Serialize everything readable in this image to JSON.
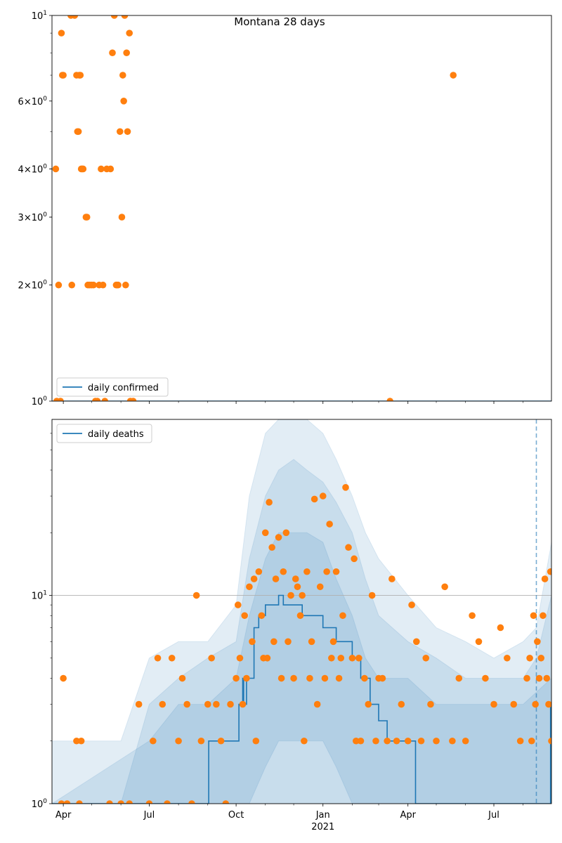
{
  "title": "Montana 28 days",
  "chart_data": [
    {
      "type": "scatter",
      "panel": "top",
      "yscale": "log",
      "ylim": [
        1,
        10
      ],
      "xlim": [
        "2020-03-20",
        "2021-08-31"
      ],
      "yticks": [
        {
          "v": 1,
          "label": "10",
          "sup": "0"
        },
        {
          "v": 2,
          "label": "2×10",
          "sup": "0"
        },
        {
          "v": 3,
          "label": "3×10",
          "sup": "0"
        },
        {
          "v": 4,
          "label": "4×10",
          "sup": "0"
        },
        {
          "v": 6,
          "label": "6×10",
          "sup": "0"
        },
        {
          "v": 10,
          "label": "10",
          "sup": "1"
        }
      ],
      "legend": {
        "label": "daily confirmed",
        "placement": "lower-left"
      },
      "line_color": "#1f77b4",
      "point_color": "#ff7f0e",
      "line": {
        "x": [
          "2020-03-20",
          "2021-08-31"
        ],
        "y": [
          1,
          1
        ]
      },
      "points": {
        "x": [
          "2020-03-24",
          "2020-03-25",
          "2020-03-27",
          "2020-03-29",
          "2020-03-30",
          "2020-03-31",
          "2020-04-01",
          "2020-04-09",
          "2020-04-10",
          "2020-04-13",
          "2020-04-15",
          "2020-04-16",
          "2020-04-17",
          "2020-04-18",
          "2020-04-19",
          "2020-04-20",
          "2020-04-21",
          "2020-04-22",
          "2020-04-25",
          "2020-04-26",
          "2020-04-27",
          "2020-04-29",
          "2020-05-01",
          "2020-05-03",
          "2020-05-05",
          "2020-05-07",
          "2020-05-09",
          "2020-05-11",
          "2020-05-13",
          "2020-05-15",
          "2020-05-17",
          "2020-05-21",
          "2020-05-23",
          "2020-05-25",
          "2020-05-27",
          "2020-05-28",
          "2020-05-29",
          "2020-05-31",
          "2020-06-02",
          "2020-06-03",
          "2020-06-04",
          "2020-06-05",
          "2020-06-06",
          "2020-06-07",
          "2020-06-08",
          "2020-06-10",
          "2020-06-11",
          "2020-06-14",
          "2021-03-13",
          "2021-05-19"
        ],
        "y": [
          4,
          1,
          2,
          1,
          9,
          7,
          7,
          10,
          2,
          10,
          7,
          5,
          5,
          7,
          7,
          4,
          4,
          4,
          3,
          3,
          2,
          2,
          2,
          2,
          1,
          1,
          2,
          4,
          2,
          1,
          4,
          4,
          8,
          10,
          2,
          2,
          2,
          5,
          3,
          7,
          6,
          10,
          2,
          8,
          5,
          9,
          1,
          1,
          1,
          7
        ]
      }
    },
    {
      "type": "line",
      "panel": "bottom",
      "yscale": "log",
      "ylim": [
        1,
        70
      ],
      "xlim": [
        "2020-03-20",
        "2021-08-31"
      ],
      "yticks": [
        {
          "v": 1,
          "label": "10",
          "sup": "0"
        },
        {
          "v": 10,
          "label": "10",
          "sup": "1"
        }
      ],
      "xticks": [
        {
          "d": "2020-04-01",
          "label": "Apr"
        },
        {
          "d": "2020-07-01",
          "label": "Jul"
        },
        {
          "d": "2020-10-01",
          "label": "Oct"
        },
        {
          "d": "2021-01-01",
          "label": "Jan",
          "sub": "2021"
        },
        {
          "d": "2021-04-01",
          "label": "Apr"
        },
        {
          "d": "2021-07-01",
          "label": "Jul"
        }
      ],
      "legend": {
        "label": "daily deaths",
        "placement": "upper-left"
      },
      "grid": "y-major",
      "vline": "2021-08-15",
      "line_color": "#1f77b4",
      "point_color": "#ff7f0e",
      "band_color": "#1f77b4",
      "line": {
        "x": [
          "2020-03-20",
          "2020-09-01",
          "2020-09-02",
          "2020-09-10",
          "2020-10-01",
          "2020-10-04",
          "2020-10-07",
          "2020-10-08",
          "2020-10-09",
          "2020-10-12",
          "2020-10-20",
          "2020-10-25",
          "2020-10-28",
          "2020-11-01",
          "2020-11-05",
          "2020-11-12",
          "2020-11-15",
          "2020-11-20",
          "2020-12-01",
          "2020-12-10",
          "2020-12-20",
          "2020-12-25",
          "2021-01-01",
          "2021-01-10",
          "2021-01-15",
          "2021-01-22",
          "2021-02-01",
          "2021-02-10",
          "2021-02-20",
          "2021-03-01",
          "2021-03-10",
          "2021-03-20",
          "2021-04-01",
          "2021-04-08",
          "2021-04-09",
          "2021-08-29",
          "2021-08-30",
          "2021-08-31"
        ],
        "y": [
          1,
          1,
          2,
          2,
          2,
          3,
          3,
          4,
          3,
          4,
          7,
          8,
          8,
          9,
          9,
          9,
          10,
          9,
          9,
          8,
          8,
          8,
          7,
          7,
          6,
          6,
          5,
          4,
          3,
          2.5,
          2,
          2,
          2,
          2,
          1,
          1,
          3,
          3
        ]
      },
      "bands": [
        {
          "x": [
            "2020-03-20",
            "2020-04-01",
            "2020-05-01",
            "2020-06-01",
            "2020-07-01",
            "2020-08-01",
            "2020-09-01",
            "2020-10-01",
            "2020-10-15",
            "2020-11-01",
            "2020-11-15",
            "2020-12-01",
            "2020-12-15",
            "2021-01-01",
            "2021-01-15",
            "2021-02-01",
            "2021-02-15",
            "2021-03-01",
            "2021-04-01",
            "2021-05-01",
            "2021-06-01",
            "2021-07-01",
            "2021-08-01",
            "2021-08-15",
            "2021-08-31"
          ],
          "lo": [
            1,
            1,
            1,
            1,
            1,
            1,
            1,
            1,
            1,
            1,
            1,
            1,
            1,
            1,
            1,
            1,
            1,
            1,
            1,
            1,
            1,
            1,
            1,
            1,
            1
          ],
          "hi": [
            2,
            2,
            2,
            2,
            5,
            6,
            6,
            9,
            30,
            60,
            70,
            70,
            70,
            60,
            45,
            30,
            20,
            15,
            10,
            7,
            6,
            5,
            6,
            7,
            18
          ]
        },
        {
          "x": [
            "2020-03-20",
            "2020-04-01",
            "2020-05-01",
            "2020-06-01",
            "2020-07-01",
            "2020-08-01",
            "2020-09-01",
            "2020-10-01",
            "2020-10-15",
            "2020-11-01",
            "2020-11-15",
            "2020-12-01",
            "2020-12-15",
            "2021-01-01",
            "2021-01-15",
            "2021-02-01",
            "2021-02-15",
            "2021-03-01",
            "2021-04-01",
            "2021-05-01",
            "2021-06-01",
            "2021-07-01",
            "2021-08-01",
            "2021-08-15",
            "2021-08-31"
          ],
          "lo": [
            1,
            1,
            1,
            1,
            1,
            1,
            1,
            1,
            1,
            1,
            1,
            1,
            1,
            1,
            1,
            1,
            1,
            1,
            1,
            1,
            1,
            1,
            1,
            1,
            1
          ],
          "hi": [
            1,
            1,
            1,
            1,
            3,
            4,
            5,
            6,
            15,
            30,
            40,
            45,
            40,
            35,
            28,
            20,
            12,
            8,
            6,
            5,
            4,
            4,
            4,
            5,
            10
          ]
        },
        {
          "x": [
            "2020-03-20",
            "2020-07-01",
            "2020-08-01",
            "2020-09-01",
            "2020-10-01",
            "2020-10-15",
            "2020-11-01",
            "2020-11-15",
            "2020-12-01",
            "2020-12-15",
            "2021-01-01",
            "2021-01-15",
            "2021-02-01",
            "2021-02-15",
            "2021-03-01",
            "2021-04-01",
            "2021-05-01",
            "2021-06-01",
            "2021-07-01",
            "2021-08-01",
            "2021-08-31"
          ],
          "lo": [
            1,
            1,
            1,
            1,
            1,
            1,
            1.5,
            2,
            2,
            2,
            2,
            1.5,
            1,
            1,
            1,
            1,
            1,
            1,
            1,
            1,
            1
          ],
          "hi": [
            1,
            2,
            3,
            3,
            4,
            8,
            15,
            20,
            20,
            20,
            18,
            12,
            8,
            5,
            4,
            4,
            3,
            3,
            3,
            3,
            4
          ]
        }
      ],
      "points": {
        "x": [
          "2020-03-30",
          "2020-04-01",
          "2020-04-05",
          "2020-04-15",
          "2020-04-18",
          "2020-04-20",
          "2020-05-20",
          "2020-06-01",
          "2020-06-10",
          "2020-06-20",
          "2020-07-01",
          "2020-07-05",
          "2020-07-10",
          "2020-07-15",
          "2020-07-20",
          "2020-07-25",
          "2020-08-01",
          "2020-08-05",
          "2020-08-10",
          "2020-08-15",
          "2020-08-20",
          "2020-08-25",
          "2020-09-01",
          "2020-09-05",
          "2020-09-10",
          "2020-09-15",
          "2020-09-20",
          "2020-09-25",
          "2020-10-01",
          "2020-10-03",
          "2020-10-05",
          "2020-10-08",
          "2020-10-10",
          "2020-10-12",
          "2020-10-15",
          "2020-10-18",
          "2020-10-20",
          "2020-10-22",
          "2020-10-25",
          "2020-10-28",
          "2020-10-30",
          "2020-11-01",
          "2020-11-03",
          "2020-11-05",
          "2020-11-08",
          "2020-11-10",
          "2020-11-12",
          "2020-11-15",
          "2020-11-18",
          "2020-11-20",
          "2020-11-23",
          "2020-11-25",
          "2020-11-28",
          "2020-12-01",
          "2020-12-03",
          "2020-12-05",
          "2020-12-08",
          "2020-12-10",
          "2020-12-12",
          "2020-12-15",
          "2020-12-18",
          "2020-12-20",
          "2020-12-23",
          "2020-12-26",
          "2020-12-29",
          "2021-01-01",
          "2021-01-03",
          "2021-01-05",
          "2021-01-08",
          "2021-01-10",
          "2021-01-12",
          "2021-01-15",
          "2021-01-18",
          "2021-01-20",
          "2021-01-22",
          "2021-01-25",
          "2021-01-28",
          "2021-02-01",
          "2021-02-03",
          "2021-02-05",
          "2021-02-08",
          "2021-02-10",
          "2021-02-14",
          "2021-02-18",
          "2021-02-22",
          "2021-02-26",
          "2021-03-01",
          "2021-03-05",
          "2021-03-10",
          "2021-03-15",
          "2021-03-20",
          "2021-03-25",
          "2021-04-01",
          "2021-04-05",
          "2021-04-10",
          "2021-04-15",
          "2021-04-20",
          "2021-04-25",
          "2021-05-01",
          "2021-05-10",
          "2021-05-18",
          "2021-05-25",
          "2021-06-01",
          "2021-06-08",
          "2021-06-15",
          "2021-06-22",
          "2021-07-01",
          "2021-07-08",
          "2021-07-15",
          "2021-07-22",
          "2021-07-29",
          "2021-08-05",
          "2021-08-08",
          "2021-08-10",
          "2021-08-12",
          "2021-08-14",
          "2021-08-16",
          "2021-08-18",
          "2021-08-20",
          "2021-08-22",
          "2021-08-24",
          "2021-08-26",
          "2021-08-28",
          "2021-08-30",
          "2021-08-31"
        ],
        "y": [
          1,
          4,
          1,
          2,
          1,
          2,
          1,
          1,
          1,
          3,
          1,
          2,
          5,
          3,
          1,
          5,
          2,
          4,
          3,
          1,
          10,
          2,
          3,
          5,
          3,
          2,
          1,
          3,
          4,
          9,
          5,
          3,
          8,
          4,
          11,
          6,
          12,
          2,
          13,
          8,
          5,
          20,
          5,
          28,
          17,
          6,
          12,
          19,
          4,
          13,
          20,
          6,
          10,
          4,
          12,
          11,
          8,
          10,
          2,
          13,
          4,
          6,
          29,
          3,
          11,
          30,
          4,
          13,
          22,
          5,
          6,
          13,
          4,
          5,
          8,
          33,
          17,
          5,
          15,
          2,
          5,
          2,
          4,
          3,
          10,
          2,
          4,
          4,
          2,
          12,
          2,
          3,
          2,
          9,
          6,
          2,
          5,
          3,
          2,
          11,
          2,
          4,
          2,
          8,
          6,
          4,
          3,
          7,
          5,
          3,
          2,
          4,
          5,
          2,
          8,
          3,
          6,
          4,
          5,
          8,
          12,
          4,
          3,
          13,
          2
        ]
      }
    }
  ]
}
